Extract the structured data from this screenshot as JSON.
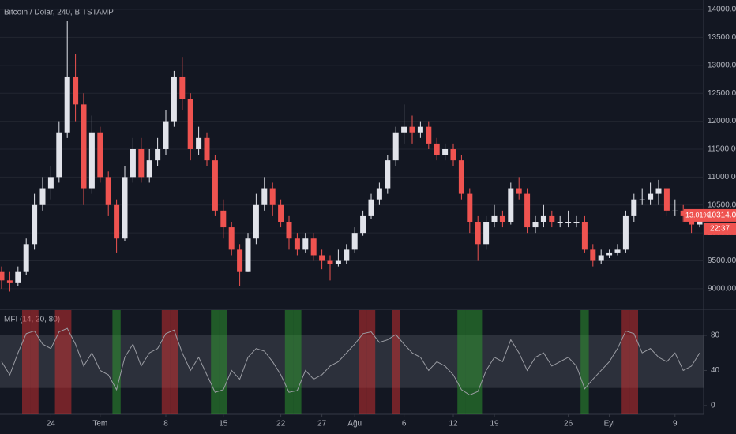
{
  "chart_data": [
    {
      "type": "candlestick",
      "title": "Bitcoin / Dolar, 240, BITSTAMP",
      "categories": [
        null,
        null,
        null,
        null,
        null,
        null,
        "24",
        null,
        null,
        null,
        null,
        null,
        "Tem",
        null,
        null,
        null,
        null,
        null,
        null,
        null,
        "8",
        null,
        null,
        null,
        null,
        null,
        null,
        "15",
        null,
        null,
        null,
        null,
        null,
        null,
        "22",
        null,
        null,
        null,
        null,
        "27",
        null,
        null,
        null,
        "Ağu",
        null,
        null,
        null,
        null,
        null,
        "6",
        null,
        null,
        null,
        null,
        null,
        "12",
        null,
        null,
        null,
        null,
        "19",
        null,
        null,
        null,
        null,
        null,
        null,
        null,
        null,
        "26",
        null,
        null,
        null,
        null,
        "Eyl",
        null,
        null,
        null,
        null,
        null,
        null,
        null,
        "9",
        null,
        null,
        null
      ],
      "open": [
        9300,
        9150,
        9100,
        9300,
        9800,
        10500,
        10800,
        11000,
        11800,
        12800,
        12300,
        10800,
        11800,
        11000,
        10500,
        9900,
        11000,
        11500,
        11000,
        11300,
        11500,
        12000,
        12800,
        12400,
        11500,
        11700,
        11300,
        10400,
        10100,
        9700,
        9300,
        9900,
        10500,
        10800,
        10500,
        10200,
        9900,
        9700,
        9900,
        9600,
        9500,
        9450,
        9500,
        9700,
        10000,
        10300,
        10600,
        10800,
        11300,
        11800,
        11900,
        11800,
        11900,
        11600,
        11400,
        11500,
        11300,
        10700,
        10200,
        9800,
        10200,
        10300,
        10200,
        10800,
        10700,
        10100,
        10200,
        10300,
        10200,
        10200,
        10200,
        10200,
        9700,
        9500,
        9600,
        9650,
        9700,
        10300,
        10600,
        10600,
        10700,
        10800,
        10400,
        10400,
        10300,
        10150
      ],
      "high": [
        9400,
        9300,
        9400,
        9900,
        10700,
        11000,
        11200,
        12000,
        13800,
        13200,
        12500,
        12100,
        11900,
        11100,
        10600,
        11200,
        11700,
        11700,
        11500,
        11700,
        12200,
        12900,
        13150,
        12500,
        11900,
        11800,
        11400,
        10600,
        10200,
        9800,
        10000,
        10700,
        11000,
        10900,
        10600,
        10300,
        10000,
        10000,
        10000,
        9700,
        9600,
        9700,
        9800,
        10100,
        10400,
        10700,
        10900,
        11400,
        11900,
        12300,
        12100,
        12000,
        12000,
        11700,
        11600,
        11600,
        11400,
        10800,
        10300,
        10300,
        10500,
        10400,
        10900,
        11000,
        10800,
        10300,
        10500,
        10400,
        10300,
        10400,
        10300,
        10300,
        9800,
        9700,
        9700,
        9800,
        10400,
        10700,
        10800,
        10900,
        10950,
        10800,
        10600,
        10500,
        10400,
        10400
      ],
      "low": [
        9000,
        8950,
        9050,
        9250,
        9700,
        10400,
        10600,
        10900,
        11700,
        12000,
        10500,
        10700,
        10900,
        10300,
        9650,
        9850,
        10900,
        10900,
        10900,
        11200,
        11400,
        11900,
        12200,
        11300,
        11400,
        11200,
        10300,
        9900,
        9600,
        9050,
        9300,
        9800,
        10400,
        10300,
        10100,
        9700,
        9600,
        9650,
        9500,
        9350,
        9150,
        9400,
        9450,
        9650,
        9950,
        10250,
        10500,
        10700,
        11200,
        11600,
        11600,
        11700,
        11500,
        11300,
        11300,
        11200,
        10600,
        10000,
        9500,
        9700,
        10100,
        10100,
        10150,
        10600,
        10000,
        10000,
        10100,
        10100,
        10100,
        10100,
        10100,
        9650,
        9400,
        9450,
        9550,
        9600,
        9650,
        10200,
        10500,
        10500,
        10500,
        10300,
        10300,
        10200,
        10000,
        10100
      ],
      "close": [
        9150,
        9100,
        9300,
        9800,
        10500,
        10800,
        11000,
        11800,
        12800,
        12300,
        10800,
        11800,
        11000,
        10500,
        9900,
        11000,
        11500,
        11000,
        11300,
        11500,
        12000,
        12800,
        12400,
        11500,
        11700,
        11300,
        10400,
        10100,
        9700,
        9300,
        9900,
        10500,
        10800,
        10500,
        10200,
        9900,
        9700,
        9900,
        9600,
        9500,
        9450,
        9500,
        9700,
        10000,
        10300,
        10600,
        10800,
        11300,
        11800,
        11900,
        11800,
        11900,
        11600,
        11400,
        11500,
        11300,
        10700,
        10200,
        9800,
        10200,
        10300,
        10200,
        10800,
        10700,
        10100,
        10200,
        10300,
        10200,
        10200,
        10200,
        10200,
        9700,
        9500,
        9600,
        9650,
        9700,
        10300,
        10600,
        10600,
        10700,
        10800,
        10400,
        10400,
        10300,
        10150,
        10314
      ],
      "up_color": "#e1e3ea",
      "down_color": "#ef5350",
      "ylim": [
        8660,
        14170
      ],
      "yticks": [
        {
          "value": 9000,
          "label": "9000.00"
        },
        {
          "value": 9500,
          "label": "9500.00"
        },
        {
          "value": 10000,
          "label": "10000.00"
        },
        {
          "value": 10500,
          "label": "10500.00"
        },
        {
          "value": 11000,
          "label": "11000.00"
        },
        {
          "value": 11500,
          "label": "11500.00"
        },
        {
          "value": 12000,
          "label": "12000.00"
        },
        {
          "value": 12500,
          "label": "12500.00"
        },
        {
          "value": 13000,
          "label": "13000.00"
        },
        {
          "value": 13500,
          "label": "13500.00"
        },
        {
          "value": 14000,
          "label": "14000.00"
        }
      ],
      "grid": true,
      "last_price": {
        "value": 10314,
        "label": "10314.00"
      },
      "change": {
        "value": 13.01,
        "label": "13.01%"
      },
      "countdown": "22:37"
    },
    {
      "type": "line",
      "title": "MFI (14, 20, 80)",
      "values": [
        50,
        35,
        60,
        82,
        85,
        70,
        65,
        84,
        88,
        70,
        45,
        60,
        40,
        35,
        18,
        55,
        70,
        45,
        60,
        65,
        82,
        86,
        60,
        40,
        55,
        35,
        15,
        18,
        40,
        30,
        55,
        65,
        62,
        50,
        35,
        15,
        17,
        40,
        30,
        35,
        45,
        50,
        60,
        70,
        82,
        84,
        72,
        75,
        81,
        70,
        60,
        55,
        40,
        50,
        45,
        35,
        18,
        12,
        16,
        40,
        55,
        50,
        75,
        60,
        40,
        55,
        60,
        45,
        50,
        55,
        45,
        19,
        30,
        40,
        50,
        65,
        85,
        82,
        60,
        65,
        55,
        50,
        60,
        40,
        45,
        60
      ],
      "color": "#9a9ca3",
      "ylim": [
        -10,
        107
      ],
      "yticks": [
        0,
        40,
        80
      ],
      "band": [
        20,
        80
      ],
      "band_color": "#787b86",
      "upper_color": "#d32f2f",
      "lower_color": "#2e9e2e"
    }
  ]
}
